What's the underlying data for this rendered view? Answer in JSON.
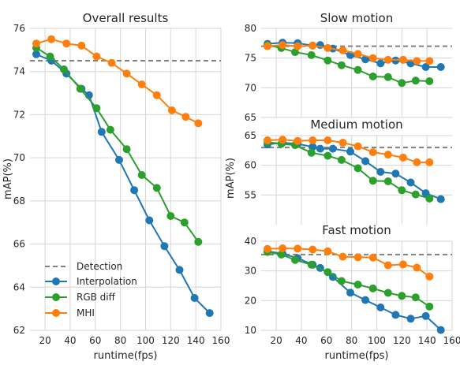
{
  "chart_data": [
    {
      "type": "line",
      "title": "Overall results",
      "xlabel": "runtime(fps)",
      "ylabel": "mAP(%)",
      "xlim": [
        8,
        160
      ],
      "ylim": [
        62,
        76
      ],
      "xticks": [
        "20",
        "40",
        "60",
        "80",
        "100",
        "120",
        "140",
        "160"
      ],
      "yticks": [
        "62",
        "64",
        "66",
        "68",
        "70",
        "72",
        "74",
        "76"
      ],
      "grid": true,
      "legend_position": "lower-left",
      "series": [
        {
          "name": "Detection",
          "style": "dashed",
          "color": "#808080",
          "x": [
            8,
            160
          ],
          "y": [
            74.5,
            74.5
          ]
        },
        {
          "name": "Interpolation",
          "color": "#1f77b4",
          "x": [
            13,
            25,
            37,
            49,
            55,
            65,
            79,
            91,
            103,
            115,
            127,
            139,
            151
          ],
          "y": [
            74.8,
            74.5,
            73.9,
            73.2,
            72.9,
            71.2,
            69.9,
            68.5,
            67.1,
            65.9,
            64.8,
            63.5,
            62.8
          ]
        },
        {
          "name": "RGB diff",
          "color": "#2ca02c",
          "x": [
            13,
            24,
            35,
            48,
            61,
            72,
            85,
            97,
            109,
            120,
            131,
            142
          ],
          "y": [
            75.1,
            74.7,
            74.1,
            73.2,
            72.3,
            71.3,
            70.4,
            69.2,
            68.6,
            67.3,
            67.0,
            66.1
          ]
        },
        {
          "name": "MHI",
          "color": "#ff7f0e",
          "x": [
            13,
            25,
            37,
            49,
            61,
            73,
            85,
            97,
            109,
            121,
            132,
            142
          ],
          "y": [
            75.3,
            75.5,
            75.3,
            75.2,
            74.7,
            74.4,
            73.9,
            73.4,
            72.9,
            72.2,
            71.9,
            71.6
          ]
        }
      ]
    },
    {
      "type": "line",
      "title": "Slow motion",
      "xlim": [
        8,
        160
      ],
      "ylim": [
        65,
        80
      ],
      "xticks": [
        "20",
        "40",
        "60",
        "80",
        "100",
        "120",
        "140"
      ],
      "yticks": [
        "65",
        "70",
        "75",
        "80"
      ],
      "grid": true,
      "series": [
        {
          "name": "Detection",
          "style": "dashed",
          "color": "#808080",
          "x": [
            8,
            160
          ],
          "y": [
            77,
            77
          ]
        },
        {
          "name": "Interpolation",
          "color": "#1f77b4",
          "x": [
            13,
            25,
            37,
            49,
            55,
            65,
            79,
            91,
            103,
            115,
            127,
            139,
            151
          ],
          "y": [
            77.4,
            77.6,
            77.5,
            77.1,
            77.2,
            76.6,
            75.5,
            74.8,
            74.1,
            74.6,
            74.1,
            73.5,
            73.5
          ]
        },
        {
          "name": "RGB diff",
          "color": "#2ca02c",
          "x": [
            13,
            24,
            35,
            48,
            61,
            72,
            85,
            97,
            109,
            120,
            131,
            142
          ],
          "y": [
            77.2,
            76.7,
            76.0,
            75.5,
            74.6,
            73.8,
            73.0,
            71.9,
            71.8,
            70.8,
            71.2,
            71.1
          ]
        },
        {
          "name": "MHI",
          "color": "#ff7f0e",
          "x": [
            13,
            25,
            37,
            49,
            61,
            73,
            85,
            97,
            109,
            121,
            132,
            142
          ],
          "y": [
            77.0,
            77.2,
            77.0,
            77.1,
            76.7,
            76.3,
            75.7,
            75.0,
            74.7,
            74.7,
            74.5,
            74.5
          ]
        }
      ]
    },
    {
      "type": "line",
      "title": "Medium motion",
      "ylabel": "mAP(%)",
      "xlim": [
        8,
        160
      ],
      "ylim": [
        50,
        65
      ],
      "xticks": [
        "20",
        "40",
        "60",
        "80",
        "100",
        "120",
        "140"
      ],
      "yticks": [
        "55",
        "60",
        "65"
      ],
      "grid": true,
      "series": [
        {
          "name": "Detection",
          "style": "dashed",
          "color": "#808080",
          "x": [
            8,
            160
          ],
          "y": [
            63,
            63
          ]
        },
        {
          "name": "Interpolation",
          "color": "#1f77b4",
          "x": [
            13,
            25,
            37,
            49,
            55,
            65,
            79,
            91,
            103,
            115,
            127,
            139,
            151
          ],
          "y": [
            63.5,
            63.8,
            63.6,
            63.1,
            62.8,
            62.8,
            62.3,
            60.7,
            58.9,
            58.6,
            57.1,
            55.3,
            54.3
          ]
        },
        {
          "name": "RGB diff",
          "color": "#2ca02c",
          "x": [
            13,
            24,
            35,
            48,
            61,
            72,
            85,
            97,
            109,
            120,
            131,
            142
          ],
          "y": [
            63.9,
            63.6,
            63.4,
            62.1,
            61.6,
            60.9,
            59.5,
            57.4,
            57.3,
            55.8,
            55.1,
            54.4
          ]
        },
        {
          "name": "MHI",
          "color": "#ff7f0e",
          "x": [
            13,
            25,
            37,
            49,
            61,
            73,
            85,
            97,
            109,
            121,
            132,
            142
          ],
          "y": [
            64.2,
            64.3,
            64.1,
            64.2,
            64.2,
            63.8,
            63.2,
            62.2,
            61.8,
            61.3,
            60.5,
            60.5
          ]
        }
      ]
    },
    {
      "type": "line",
      "title": "Fast motion",
      "xlabel": "runtime(fps)",
      "xlim": [
        8,
        160
      ],
      "ylim": [
        10,
        40
      ],
      "xticks": [
        "20",
        "40",
        "60",
        "80",
        "100",
        "120",
        "140",
        "160"
      ],
      "yticks": [
        "10",
        "20",
        "30",
        "40"
      ],
      "grid": true,
      "series": [
        {
          "name": "Detection",
          "style": "dashed",
          "color": "#808080",
          "x": [
            8,
            160
          ],
          "y": [
            35.5,
            35.5
          ]
        },
        {
          "name": "Interpolation",
          "color": "#1f77b4",
          "x": [
            13,
            25,
            37,
            49,
            55,
            65,
            79,
            91,
            103,
            115,
            127,
            139,
            151
          ],
          "y": [
            36.6,
            35.8,
            34.3,
            32.1,
            31.0,
            28.0,
            22.7,
            20.2,
            17.7,
            15.2,
            13.9,
            14.8,
            10.1
          ]
        },
        {
          "name": "RGB diff",
          "color": "#2ca02c",
          "x": [
            13,
            24,
            35,
            48,
            61,
            72,
            85,
            97,
            109,
            120,
            131,
            142
          ],
          "y": [
            36.4,
            35.5,
            33.7,
            32.1,
            29.6,
            26.6,
            25.4,
            24.1,
            22.6,
            21.6,
            21.1,
            18.0
          ]
        },
        {
          "name": "MHI",
          "color": "#ff7f0e",
          "x": [
            13,
            25,
            37,
            49,
            61,
            73,
            85,
            97,
            109,
            121,
            132,
            142
          ],
          "y": [
            37.4,
            37.6,
            37.5,
            37.2,
            36.6,
            34.8,
            34.6,
            34.5,
            31.9,
            32.2,
            31.1,
            28.1
          ]
        }
      ]
    }
  ]
}
